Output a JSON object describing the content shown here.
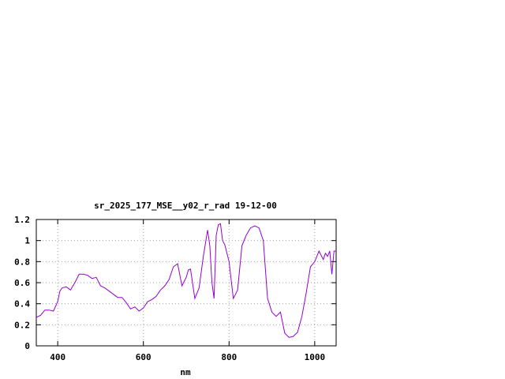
{
  "chart_data": {
    "type": "line",
    "title": "sr_2025_177_MSE__y02_r_rad 19-12-00",
    "xlabel": "nm",
    "ylabel": "",
    "xlim": [
      350,
      1050
    ],
    "ylim": [
      0,
      1.2
    ],
    "x_ticks": [
      400,
      600,
      800,
      1000
    ],
    "y_ticks": [
      0,
      0.2,
      0.4,
      0.6,
      0.8,
      1,
      1.2
    ],
    "x_tick_labels": [
      "400",
      "600",
      "800",
      "1000"
    ],
    "y_tick_labels": [
      "0",
      "0.2",
      "0.4",
      "0.6",
      "0.8",
      "1",
      "1.2"
    ],
    "grid": true,
    "line_color": "#9400d3",
    "series": [
      {
        "x": [
          350,
          360,
          370,
          380,
          390,
          400,
          405,
          410,
          420,
          430,
          440,
          450,
          460,
          470,
          480,
          490,
          500,
          510,
          520,
          530,
          540,
          550,
          560,
          570,
          580,
          590,
          600,
          610,
          620,
          630,
          640,
          650,
          660,
          670,
          680,
          690,
          700,
          705,
          710,
          720,
          730,
          740,
          750,
          755,
          760,
          765,
          770,
          775,
          780,
          785,
          790,
          800,
          810,
          815,
          820,
          830,
          840,
          850,
          860,
          870,
          880,
          890,
          900,
          910,
          920,
          930,
          940,
          950,
          960,
          970,
          980,
          990,
          1000,
          1010,
          1020,
          1025,
          1030,
          1035,
          1040,
          1045,
          1050
        ],
        "y": [
          0.27,
          0.29,
          0.34,
          0.34,
          0.33,
          0.42,
          0.52,
          0.55,
          0.56,
          0.53,
          0.6,
          0.68,
          0.68,
          0.67,
          0.64,
          0.65,
          0.57,
          0.55,
          0.52,
          0.49,
          0.46,
          0.46,
          0.41,
          0.35,
          0.37,
          0.33,
          0.36,
          0.42,
          0.44,
          0.47,
          0.53,
          0.57,
          0.63,
          0.75,
          0.78,
          0.57,
          0.65,
          0.72,
          0.73,
          0.45,
          0.55,
          0.85,
          1.1,
          0.95,
          0.6,
          0.45,
          1.05,
          1.15,
          1.16,
          1.0,
          0.96,
          0.8,
          0.45,
          0.49,
          0.53,
          0.95,
          1.05,
          1.12,
          1.14,
          1.12,
          1.0,
          0.45,
          0.32,
          0.28,
          0.32,
          0.12,
          0.08,
          0.09,
          0.13,
          0.28,
          0.5,
          0.75,
          0.8,
          0.9,
          0.82,
          0.88,
          0.85,
          0.9,
          0.68,
          0.9,
          0.9
        ]
      }
    ]
  }
}
